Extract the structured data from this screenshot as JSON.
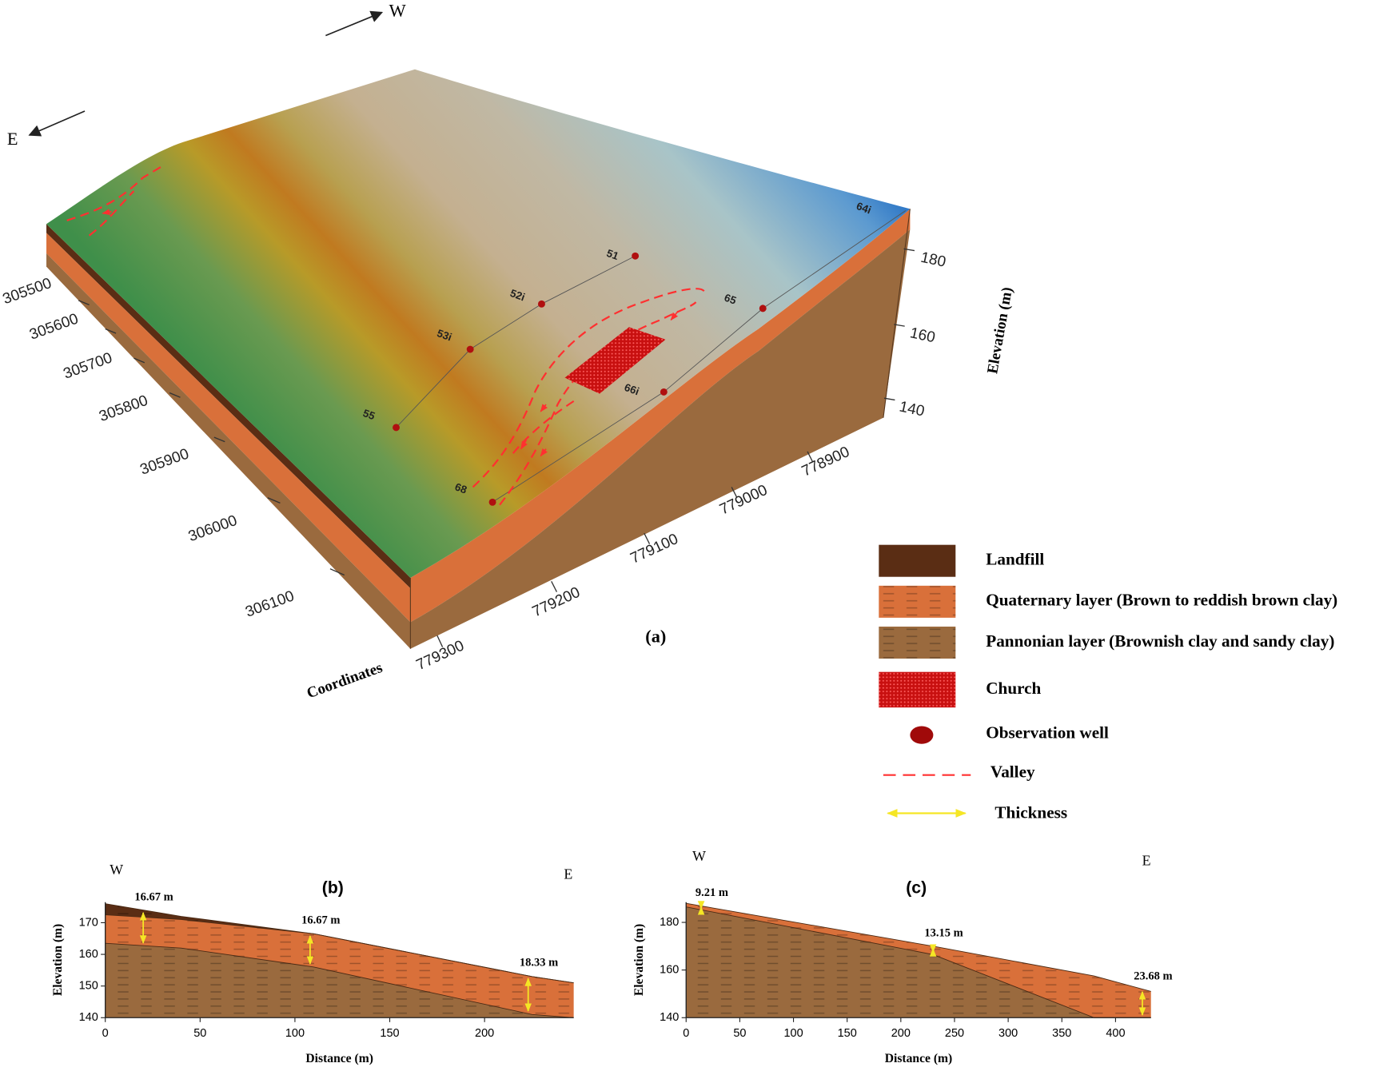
{
  "block_diagram": {
    "panel_label": "(a)",
    "directions": {
      "west": "W",
      "east": "E"
    },
    "coordinate_label": "Coordinates",
    "northing_ticks": [
      305500,
      305600,
      305700,
      305800,
      305900,
      306000,
      306100
    ],
    "easting_ticks": [
      779300,
      779200,
      779100,
      779000,
      778900
    ],
    "elevation_label": "Elevation (m)",
    "elevation_ticks": [
      180,
      160,
      140
    ],
    "wells": [
      "51",
      "52i",
      "53i",
      "55",
      "68",
      "66i",
      "65",
      "64i"
    ]
  },
  "legend": {
    "items": [
      "Landfill",
      "Quaternary layer (Brown to reddish brown clay)",
      "Pannonian layer (Brownish clay and sandy clay)",
      "Church",
      "Observation well",
      "Valley",
      "Thickness"
    ]
  },
  "chart_data": [
    {
      "type": "area",
      "panel_label": "(b)",
      "west_label": "W",
      "east_label": "E",
      "xlabel": "Distance (m)",
      "ylabel": "Elevation (m)",
      "x": [
        0,
        40,
        110,
        225,
        247
      ],
      "series": [
        {
          "color": "#5a2d14",
          "values": [
            176,
            172,
            166.5,
            153,
            151
          ]
        },
        {
          "color": "#d9703a",
          "values": [
            172.5,
            171,
            166.5,
            153,
            151
          ]
        },
        {
          "color": "#9a6a3e",
          "values": [
            163.5,
            162,
            156,
            141,
            140
          ]
        }
      ],
      "xlim": [
        0,
        247
      ],
      "ylim": [
        140,
        176.5
      ],
      "xticks": [
        0,
        50,
        100,
        150,
        200
      ],
      "yticks": [
        140,
        150,
        160,
        170
      ],
      "annotations": [
        {
          "text": "16.67 m",
          "x": 20
        },
        {
          "text": "16.67 m",
          "x": 108
        },
        {
          "text": "18.33 m",
          "x": 223
        }
      ]
    },
    {
      "type": "area",
      "panel_label": "(c)",
      "west_label": "W",
      "east_label": "E",
      "xlabel": "Distance (m)",
      "ylabel": "Elevation (m)",
      "x": [
        0,
        230,
        380,
        433
      ],
      "series": [
        {
          "color": "#d9703a",
          "values": [
            188,
            170,
            157.5,
            151
          ]
        },
        {
          "color": "#9a6a3e",
          "values": [
            186.5,
            166.5,
            140,
            140
          ]
        }
      ],
      "xlim": [
        0,
        433
      ],
      "ylim": [
        140,
        188.5
      ],
      "xticks": [
        0,
        50,
        100,
        150,
        200,
        250,
        300,
        350,
        400
      ],
      "yticks": [
        140,
        160,
        180
      ],
      "annotations": [
        {
          "text": "9.21 m",
          "x": 14
        },
        {
          "text": "13.15 m",
          "x": 230
        },
        {
          "text": "23.68 m",
          "x": 425
        }
      ]
    }
  ]
}
